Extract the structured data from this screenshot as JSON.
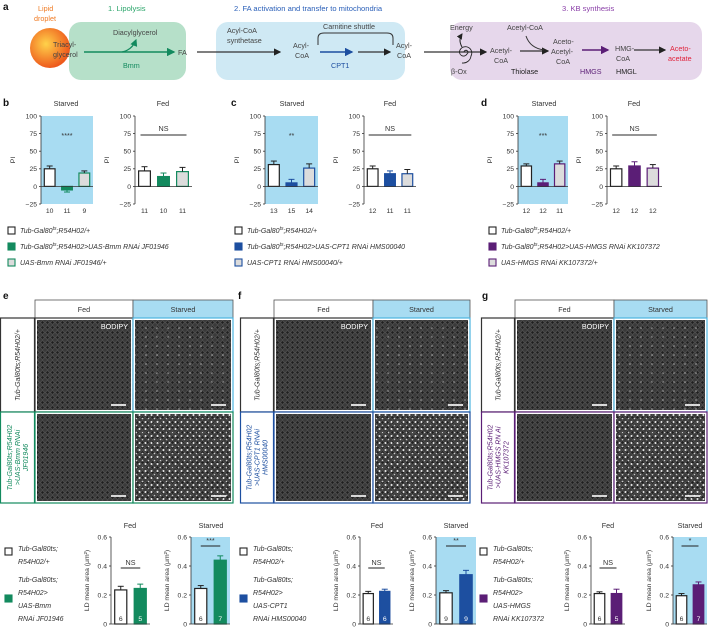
{
  "colors": {
    "bmm": "#138a5e",
    "cpt1": "#1d4fa0",
    "hmgs": "#5b1e76",
    "starved_bg": "#a8dcf2",
    "lipolysis_bg": "#b6e0c9",
    "fa_bg": "#cfe9f4",
    "kb_bg": "#e6d7eb",
    "droplet": "#f07a22",
    "acetoacetate": "#e0243c"
  },
  "panel_a": {
    "label": "a",
    "droplet": [
      "Lipid",
      "droplet"
    ],
    "stage1": "1. Lipolysis",
    "stage2": "2. FA activation and transfer to mitochondria",
    "stage3": "3. KB synthesis",
    "triacylglycerol": [
      "Triacyl-",
      "glycerol"
    ],
    "diacylglycerol": "Diacylglycerol",
    "bmm": "Bmm",
    "fa": "FA",
    "acyl_coa_synthetase": [
      "Acyl-CoA",
      "synthetase"
    ],
    "acyl_coa": [
      "Acyl-",
      "CoA"
    ],
    "carnitine_shuttle": "Carnitine shuttle",
    "cpt1": "CPT1",
    "energy": "Energy",
    "beta_ox": "β-Ox",
    "acetyl_coa_top": "Acetyl-CoA",
    "acetyl_coa": [
      "Acetyl-",
      "CoA"
    ],
    "thiolase": "Thiolase",
    "acetoacetyl_coa": [
      "Aceto-",
      "Acetyl-",
      "CoA"
    ],
    "hmgs": "HMGS",
    "hmg_coa": [
      "HMG-",
      "CoA"
    ],
    "hmgl": "HMGL",
    "acetoacetate": [
      "Aceto-",
      "acetate"
    ]
  },
  "panel_labels": {
    "b": "b",
    "c": "c",
    "d": "d",
    "e": "e",
    "f": "f",
    "g": "g"
  },
  "legends_pi": [
    [
      {
        "pre": "Tub-Gal80",
        "sup": "ts",
        "post": ";R54H02/+"
      },
      {
        "pre": "Tub-Gal80",
        "sup": "ts",
        "post": ";R54H02>UAS-Bmm RNAi JF01946"
      },
      {
        "pre": "UAS-Bmm RNAi JF01946/+",
        "sup": "",
        "post": ""
      }
    ],
    [
      {
        "pre": "Tub-Gal80",
        "sup": "ts",
        "post": ";R54H02/+"
      },
      {
        "pre": "Tub-Gal80",
        "sup": "ts",
        "post": ";R54H02>UAS-CPT1 RNAi HMS00040"
      },
      {
        "pre": "UAS-CPT1 RNAi HMS00040/+",
        "sup": "",
        "post": ""
      }
    ],
    [
      {
        "pre": "Tub-Gal80",
        "sup": "ts",
        "post": ";R54H02/+"
      },
      {
        "pre": "Tub-Gal80",
        "sup": "ts",
        "post": ";R54H02>UAS-HMGS RNAi KK107372"
      },
      {
        "pre": "UAS-HMGS RNAi KK107372/+",
        "sup": "",
        "post": ""
      }
    ]
  ],
  "imaging": {
    "headers": {
      "fed": "Fed",
      "starved": "Starved"
    },
    "stain": "BODIPY",
    "row_labels": [
      {
        "control": [
          "Tub-Gal80ts;R54H02/+"
        ],
        "rnai": [
          "Tub-Gal80ts;R54H02",
          ">UAS-Bmm RNAi",
          "JF01946"
        ]
      },
      {
        "control": [
          "Tub-Gal80ts;R54H02/+"
        ],
        "rnai": [
          "Tub-Gal80ts;R54H02",
          ">UAS-CPT1 RNAi",
          "HMS00040"
        ]
      },
      {
        "control": [
          "Tub-Gal80ts;R54H02/+"
        ],
        "rnai": [
          "Tub-Gal80ts;R54H02",
          ">UAS-HMGS RN Ai",
          "KK107372"
        ]
      }
    ]
  },
  "legends_ld": [
    {
      "control": [
        "Tub-Gal80ts;",
        "R54H02/+"
      ],
      "rnai": [
        "Tub-Gal80ts;",
        "R54H02>",
        "UAS-Bmm",
        "RNAi JF01946"
      ]
    },
    {
      "control": [
        "Tub-Gal80ts;",
        "R54H02/+"
      ],
      "rnai": [
        "Tub-Gal80ts;",
        "R54H02>",
        "UAS-CPT1",
        "RNAi HMS00040"
      ]
    },
    {
      "control": [
        "Tub-Gal80ts;",
        "R54H02/+"
      ],
      "rnai": [
        "Tub-Gal80ts;",
        "R54H02>",
        "UAS-HMGS",
        "RNAi KK107372"
      ]
    }
  ],
  "chart_data": [
    {
      "panel": "b",
      "type": "bar",
      "title": "Starved",
      "ylabel": "PI",
      "ylim": [
        -25,
        100
      ],
      "yticks": [
        "100",
        "75",
        "50",
        "25",
        "0",
        "−25"
      ],
      "values": [
        25,
        -5,
        19
      ],
      "sem": [
        4,
        3,
        3
      ],
      "n": [
        "10",
        "11",
        "9"
      ],
      "significance": "****",
      "gene": "bmm"
    },
    {
      "panel": "b",
      "type": "bar",
      "title": "Fed",
      "ylabel": "PI",
      "ylim": [
        -25,
        100
      ],
      "yticks": [
        "100",
        "75",
        "50",
        "25",
        "0",
        "−25"
      ],
      "values": [
        22,
        14,
        21
      ],
      "sem": [
        6,
        5,
        6
      ],
      "n": [
        "11",
        "10",
        "11"
      ],
      "significance": "NS",
      "gene": "bmm"
    },
    {
      "panel": "c",
      "type": "bar",
      "title": "Starved",
      "ylabel": "PI",
      "ylim": [
        -25,
        100
      ],
      "yticks": [
        "100",
        "75",
        "50",
        "25",
        "0",
        "−25"
      ],
      "values": [
        31,
        5,
        26
      ],
      "sem": [
        5,
        5,
        6
      ],
      "n": [
        "13",
        "15",
        "14"
      ],
      "significance": "**",
      "gene": "cpt1"
    },
    {
      "panel": "c",
      "type": "bar",
      "title": "Fed",
      "ylabel": "PI",
      "ylim": [
        -25,
        100
      ],
      "yticks": [
        "100",
        "75",
        "50",
        "25",
        "0",
        "−25"
      ],
      "values": [
        25,
        18,
        18
      ],
      "sem": [
        4,
        4,
        6
      ],
      "n": [
        "12",
        "11",
        "11"
      ],
      "significance": "NS",
      "gene": "cpt1"
    },
    {
      "panel": "d",
      "type": "bar",
      "title": "Starved",
      "ylabel": "PI",
      "ylim": [
        -25,
        100
      ],
      "yticks": [
        "100",
        "75",
        "50",
        "25",
        "0",
        "−25"
      ],
      "values": [
        29,
        5,
        32
      ],
      "sem": [
        3,
        5,
        4
      ],
      "n": [
        "12",
        "12",
        "11"
      ],
      "significance": "***",
      "gene": "hmgs"
    },
    {
      "panel": "d",
      "type": "bar",
      "title": "Fed",
      "ylabel": "PI",
      "ylim": [
        -25,
        100
      ],
      "yticks": [
        "100",
        "75",
        "50",
        "25",
        "0",
        "−25"
      ],
      "values": [
        25,
        29,
        26
      ],
      "sem": [
        4,
        6,
        5
      ],
      "n": [
        "12",
        "12",
        "12"
      ],
      "significance": "NS",
      "gene": "hmgs"
    },
    {
      "panel": "e",
      "type": "bar",
      "title": "Fed",
      "ylabel": "LD mean area (μm²)",
      "ylim": [
        0,
        0.6
      ],
      "yticks": [
        "0.6",
        "0.4",
        "0.2",
        "0"
      ],
      "values": [
        0.235,
        0.245
      ],
      "sem": [
        0.025,
        0.03
      ],
      "n": [
        "6",
        "5"
      ],
      "significance": "NS",
      "gene": "bmm"
    },
    {
      "panel": "e",
      "type": "bar",
      "title": "Starved",
      "ylabel": "LD mean area (μm²)",
      "ylim": [
        0,
        0.6
      ],
      "yticks": [
        "0.6",
        "0.4",
        "0.2",
        "0"
      ],
      "values": [
        0.245,
        0.44
      ],
      "sem": [
        0.02,
        0.03
      ],
      "n": [
        "6",
        "7"
      ],
      "significance": "***",
      "gene": "bmm"
    },
    {
      "panel": "f",
      "type": "bar",
      "title": "Fed",
      "ylabel": "LD mean area (μm²)",
      "ylim": [
        0,
        0.6
      ],
      "yticks": [
        "0.6",
        "0.4",
        "0.2",
        "0"
      ],
      "values": [
        0.21,
        0.225
      ],
      "sem": [
        0.015,
        0.015
      ],
      "n": [
        "6",
        "6"
      ],
      "significance": "NS",
      "gene": "cpt1"
    },
    {
      "panel": "f",
      "type": "bar",
      "title": "Starved",
      "ylabel": "LD mean area (μm²)",
      "ylim": [
        0,
        0.6
      ],
      "yticks": [
        "0.6",
        "0.4",
        "0.2",
        "0"
      ],
      "values": [
        0.215,
        0.34
      ],
      "sem": [
        0.015,
        0.03
      ],
      "n": [
        "9",
        "9"
      ],
      "significance": "**",
      "gene": "cpt1"
    },
    {
      "panel": "g",
      "type": "bar",
      "title": "Fed",
      "ylabel": "LD mean area (μm²)",
      "ylim": [
        0,
        0.6
      ],
      "yticks": [
        "0.6",
        "0.4",
        "0.2",
        "0"
      ],
      "values": [
        0.21,
        0.21
      ],
      "sem": [
        0.012,
        0.03
      ],
      "n": [
        "6",
        "5"
      ],
      "significance": "NS",
      "gene": "hmgs"
    },
    {
      "panel": "g",
      "type": "bar",
      "title": "Starved",
      "ylabel": "LD mean area (μm²)",
      "ylim": [
        0,
        0.6
      ],
      "yticks": [
        "0.6",
        "0.4",
        "0.2",
        "0"
      ],
      "values": [
        0.195,
        0.27
      ],
      "sem": [
        0.015,
        0.02
      ],
      "n": [
        "6",
        "7"
      ],
      "significance": "*",
      "gene": "hmgs"
    }
  ]
}
